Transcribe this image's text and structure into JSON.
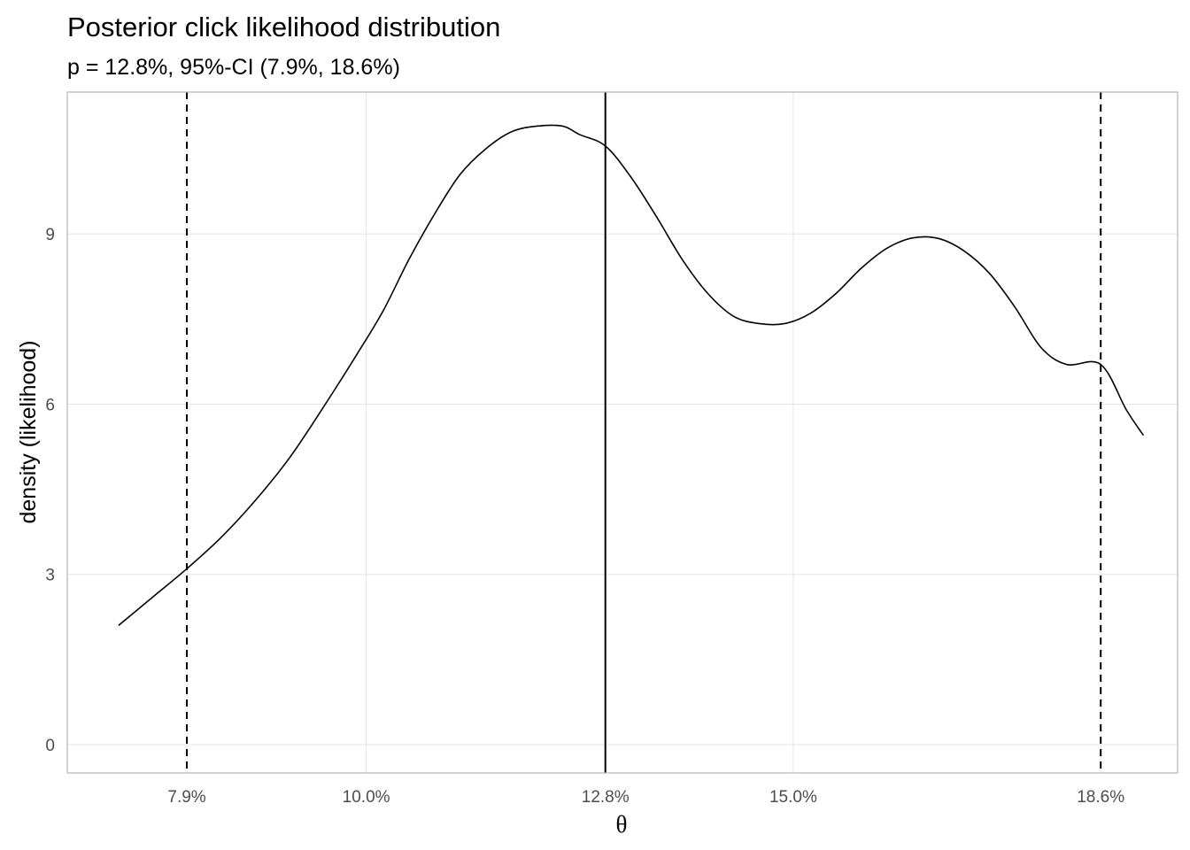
{
  "chart_data": {
    "type": "line",
    "title": "Posterior click likelihood distribution",
    "subtitle": "p = 12.8%, 95%-CI (7.9%, 18.6%)",
    "xlabel": "θ",
    "ylabel": "density (likelihood)",
    "xlim": [
      6.5,
      19.5
    ],
    "ylim": [
      -0.5,
      11.5
    ],
    "x_ticks": [
      {
        "value": 7.9,
        "label": "7.9%"
      },
      {
        "value": 10.0,
        "label": "10.0%"
      },
      {
        "value": 12.8,
        "label": "12.8%"
      },
      {
        "value": 15.0,
        "label": "15.0%"
      },
      {
        "value": 18.6,
        "label": "18.6%"
      }
    ],
    "y_ticks": [
      {
        "value": 0,
        "label": "0"
      },
      {
        "value": 3,
        "label": "3"
      },
      {
        "value": 6,
        "label": "6"
      },
      {
        "value": 9,
        "label": "9"
      }
    ],
    "grid": true,
    "legend": "none",
    "series": [
      {
        "x": [
          7.1,
          7.5,
          7.9,
          8.3,
          8.7,
          9.1,
          9.5,
          9.9,
          10.2,
          10.5,
          10.8,
          11.1,
          11.4,
          11.7,
          12.0,
          12.3,
          12.5,
          12.8,
          13.1,
          13.4,
          13.7,
          14.0,
          14.3,
          14.6,
          14.9,
          15.2,
          15.5,
          15.8,
          16.1,
          16.4,
          16.7,
          17.0,
          17.3,
          17.6,
          17.9,
          18.2,
          18.6,
          18.9,
          19.1
        ],
        "y": [
          2.1,
          2.6,
          3.1,
          3.65,
          4.3,
          5.05,
          5.95,
          6.9,
          7.65,
          8.55,
          9.35,
          10.05,
          10.5,
          10.8,
          10.9,
          10.9,
          10.75,
          10.55,
          10.0,
          9.3,
          8.55,
          7.95,
          7.55,
          7.42,
          7.42,
          7.6,
          7.95,
          8.4,
          8.75,
          8.93,
          8.92,
          8.7,
          8.3,
          7.7,
          7.0,
          6.7,
          6.7,
          5.9,
          5.45
        ]
      }
    ],
    "reference_lines": {
      "estimate": 12.8,
      "ci_lower": 7.9,
      "ci_upper": 18.6
    }
  }
}
